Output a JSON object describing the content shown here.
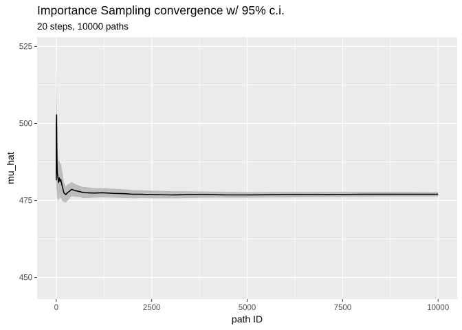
{
  "chart_data": {
    "type": "line",
    "title": "Importance Sampling convergence w/ 95% c.i.",
    "subtitle": "20 steps, 10000 paths",
    "xlabel": "path ID",
    "ylabel": "mu_hat",
    "xlim": [
      -500,
      10500
    ],
    "ylim": [
      443,
      528
    ],
    "x_ticks": [
      0,
      2500,
      5000,
      7500,
      10000
    ],
    "x_tick_labels": [
      "0",
      "2500",
      "5000",
      "7500",
      "10000"
    ],
    "y_ticks": [
      450,
      475,
      500,
      525
    ],
    "y_tick_labels": [
      "450",
      "475",
      "500",
      "525"
    ],
    "grid": true,
    "legend": "none",
    "colors": {
      "panel": "#ebebeb",
      "grid": "#ffffff",
      "line": "#000000",
      "band": "#bdbdbd"
    },
    "series": [
      {
        "x": [
          1,
          3,
          6,
          10,
          15,
          20,
          25,
          30,
          40,
          50,
          60,
          80,
          100,
          120,
          150,
          200,
          250,
          300,
          350,
          400,
          450,
          500,
          600,
          700,
          800,
          1000,
          1200,
          1500,
          1800,
          2000,
          2200,
          2500,
          3000,
          3500,
          4000,
          4500,
          5000,
          6000,
          7000,
          8000,
          9000,
          10000
        ],
        "y": [
          481.5,
          499.5,
          501.5,
          502.8,
          495.0,
          488.0,
          485.0,
          484.0,
          483.0,
          482.0,
          480.8,
          482.3,
          481.2,
          481.8,
          480.0,
          477.5,
          476.9,
          477.6,
          478.0,
          478.6,
          478.4,
          478.2,
          477.9,
          477.6,
          477.5,
          477.4,
          477.5,
          477.3,
          477.2,
          477.0,
          477.0,
          476.9,
          476.8,
          476.9,
          476.9,
          476.8,
          476.8,
          476.9,
          476.9,
          477.0,
          477.0,
          477.0
        ],
        "lower": [
          473.0,
          474.0,
          477.0,
          479.0,
          478.5,
          477.0,
          476.0,
          475.5,
          475.5,
          475.0,
          474.5,
          476.0,
          475.5,
          476.0,
          475.0,
          474.5,
          474.3,
          475.0,
          475.6,
          476.3,
          476.3,
          476.2,
          476.1,
          475.8,
          475.8,
          475.9,
          476.0,
          475.9,
          475.8,
          475.7,
          475.8,
          475.7,
          475.7,
          475.8,
          475.9,
          475.9,
          475.9,
          476.0,
          476.1,
          476.2,
          476.3,
          476.3
        ],
        "upper": [
          490.0,
          515.0,
          518.0,
          510.0,
          505.0,
          498.0,
          494.0,
          491.5,
          490.0,
          489.0,
          487.5,
          488.0,
          487.0,
          487.0,
          485.0,
          481.0,
          479.5,
          480.2,
          480.5,
          481.0,
          480.6,
          480.3,
          479.8,
          479.4,
          479.3,
          479.0,
          479.0,
          478.8,
          478.6,
          478.4,
          478.3,
          478.2,
          478.0,
          478.0,
          477.9,
          477.8,
          477.7,
          477.8,
          477.8,
          477.8,
          477.8,
          477.7
        ]
      }
    ]
  }
}
